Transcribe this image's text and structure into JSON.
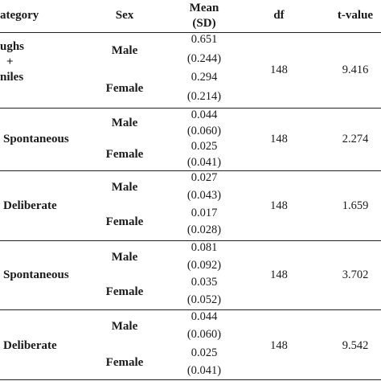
{
  "header": {
    "category": "ategory",
    "sex": "Sex",
    "mean_line1": "Mean",
    "mean_line2": "(SD)",
    "df": "df",
    "t_value": "t-value"
  },
  "groups": [
    {
      "category_lines": [
        "ughs",
        "+",
        "niles"
      ],
      "df": "148",
      "t_value": "9.416",
      "rows": [
        {
          "sex": "Male",
          "mean": "0.651",
          "sd": "(0.244)"
        },
        {
          "sex": "Female",
          "mean": "0.294",
          "sd": "(0.214)"
        }
      ]
    },
    {
      "category_lines": [
        "Spontaneous"
      ],
      "df": "148",
      "t_value": "2.274",
      "rows": [
        {
          "sex": "Male",
          "mean": "0.044",
          "sd": "(0.060)"
        },
        {
          "sex": "Female",
          "mean": "0.025",
          "sd": "(0.041)"
        }
      ]
    },
    {
      "category_lines": [
        "Deliberate"
      ],
      "df": "148",
      "t_value": "1.659",
      "rows": [
        {
          "sex": "Male",
          "mean": "0.027",
          "sd": "(0.043)"
        },
        {
          "sex": "Female",
          "mean": "0.017",
          "sd": "(0.028)"
        }
      ]
    },
    {
      "category_lines": [
        "Spontaneous"
      ],
      "df": "148",
      "t_value": "3.702",
      "rows": [
        {
          "sex": "Male",
          "mean": "0.081",
          "sd": "(0.092)"
        },
        {
          "sex": "Female",
          "mean": "0.035",
          "sd": "(0.052)"
        }
      ]
    },
    {
      "category_lines": [
        "Deliberate"
      ],
      "df": "148",
      "t_value": "9.542",
      "rows": [
        {
          "sex": "Male",
          "mean": "0.044",
          "sd": "(0.060)"
        },
        {
          "sex": "Female",
          "mean": "0.025",
          "sd": "(0.041)"
        }
      ]
    }
  ]
}
